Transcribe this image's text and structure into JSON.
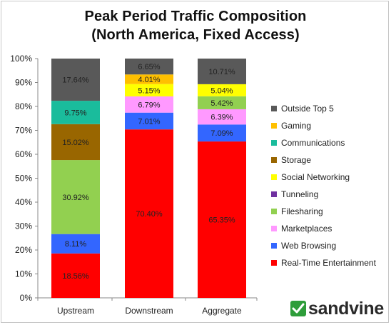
{
  "chart_data": {
    "type": "bar",
    "stacked": true,
    "title": "Peak Period Traffic Composition",
    "subtitle": "(North America, Fixed Access)",
    "categories": [
      "Upstream",
      "Downstream",
      "Aggregate"
    ],
    "ylim": [
      0,
      100
    ],
    "yticks": [
      "0%",
      "10%",
      "20%",
      "30%",
      "40%",
      "50%",
      "60%",
      "70%",
      "80%",
      "90%",
      "100%"
    ],
    "grid": false,
    "legend_position": "right",
    "series": [
      {
        "name": "Real-Time Entertainment",
        "color": "#ff0000",
        "values": [
          18.56,
          70.4,
          65.35
        ],
        "labels": [
          "18.56%",
          "70.40%",
          "65.35%"
        ]
      },
      {
        "name": "Web Browsing",
        "color": "#3366ff",
        "values": [
          8.11,
          7.01,
          7.09
        ],
        "labels": [
          "8.11%",
          "7.01%",
          "7.09%"
        ]
      },
      {
        "name": "Marketplaces",
        "color": "#ff99ff",
        "values": [
          0,
          6.79,
          6.39
        ],
        "labels": [
          "",
          "6.79%",
          "6.39%"
        ]
      },
      {
        "name": "Filesharing",
        "color": "#92d050",
        "values": [
          30.92,
          0,
          5.42
        ],
        "labels": [
          "30.92%",
          "",
          "5.42%"
        ]
      },
      {
        "name": "Tunneling",
        "color": "#7030a0",
        "values": [
          0,
          0,
          0
        ],
        "labels": [
          "",
          "",
          ""
        ]
      },
      {
        "name": "Social Networking",
        "color": "#ffff00",
        "values": [
          0,
          5.15,
          5.04
        ],
        "labels": [
          "",
          "5.15%",
          "5.04%"
        ]
      },
      {
        "name": "Storage",
        "color": "#996600",
        "values": [
          15.02,
          0,
          0
        ],
        "labels": [
          "15.02%",
          "",
          ""
        ]
      },
      {
        "name": "Communications",
        "color": "#1abc9c",
        "values": [
          9.75,
          0,
          0
        ],
        "labels": [
          "9.75%",
          "",
          ""
        ]
      },
      {
        "name": "Gaming",
        "color": "#ffc000",
        "values": [
          0,
          4.01,
          0
        ],
        "labels": [
          "",
          "4.01%",
          ""
        ]
      },
      {
        "name": "Outside Top 5",
        "color": "#595959",
        "values": [
          17.64,
          6.65,
          10.71
        ],
        "labels": [
          "17.64%",
          "6.65%",
          "10.71%"
        ]
      }
    ],
    "legend_order": [
      "Outside Top 5",
      "Gaming",
      "Communications",
      "Storage",
      "Social Networking",
      "Tunneling",
      "Filesharing",
      "Marketplaces",
      "Web Browsing",
      "Real-Time Entertainment"
    ]
  },
  "brand": {
    "name": "sandvine",
    "color": "#2e9d3a"
  }
}
